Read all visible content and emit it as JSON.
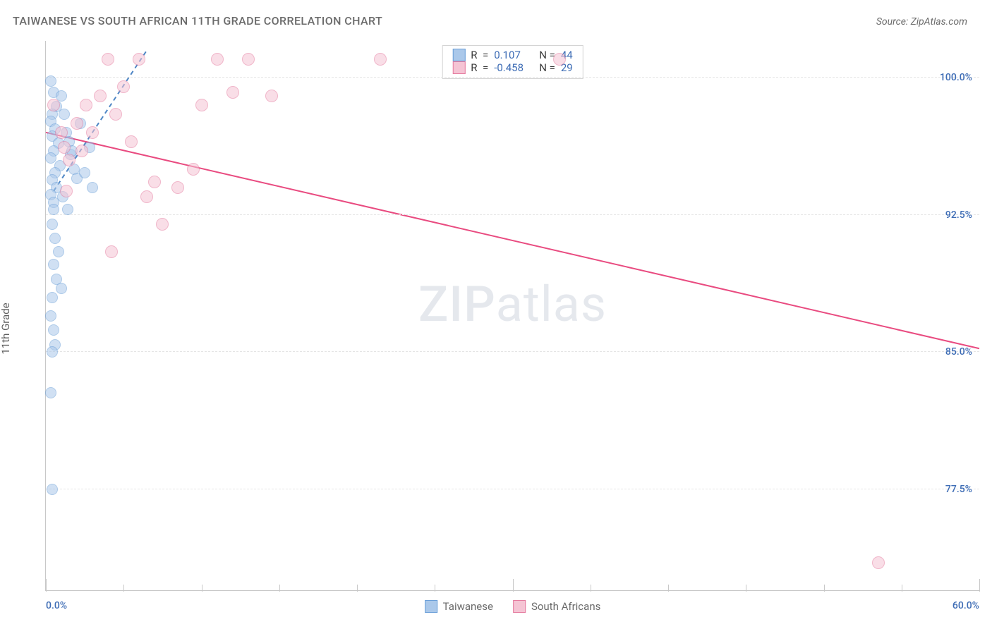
{
  "header": {
    "title": "TAIWANESE VS SOUTH AFRICAN 11TH GRADE CORRELATION CHART",
    "source": "Source: ZipAtlas.com"
  },
  "watermark": {
    "prefix": "ZIP",
    "suffix": "atlas"
  },
  "ylabel": "11th Grade",
  "chart": {
    "type": "scatter",
    "xlim": [
      0,
      60
    ],
    "ylim": [
      72,
      102
    ],
    "xticks": [
      0,
      30,
      60
    ],
    "xtick_labels": [
      "0.0%",
      "",
      "60.0%"
    ],
    "yticks": [
      77.5,
      85.0,
      92.5,
      100.0
    ],
    "ytick_labels": [
      "77.5%",
      "85.0%",
      "92.5%",
      "100.0%"
    ],
    "xminor_ticks": [
      5,
      10,
      15,
      20,
      25,
      35,
      40,
      45,
      50,
      55
    ],
    "grid_color": "#e5e5e5",
    "axis_color": "#c8c8c8",
    "background_color": "#ffffff",
    "tick_label_color": "#3d6cb5",
    "series": [
      {
        "name": "Taiwanese",
        "label": "Taiwanese",
        "marker_fill": "#aac8ea",
        "marker_fill_opacity": 0.55,
        "marker_stroke": "#6b9fd8",
        "marker_radius": 8,
        "trend_dashed": true,
        "trend": {
          "x0": 0.5,
          "y0": 93.8,
          "x1": 6.5,
          "y1": 101.5,
          "color": "#4e86c5",
          "width": 2
        },
        "stats": {
          "R": "0.107",
          "N": "44"
        },
        "points": [
          [
            0.3,
            99.8
          ],
          [
            0.5,
            99.2
          ],
          [
            0.7,
            98.4
          ],
          [
            0.4,
            98.0
          ],
          [
            0.3,
            97.6
          ],
          [
            0.6,
            97.2
          ],
          [
            0.4,
            96.8
          ],
          [
            0.8,
            96.4
          ],
          [
            0.5,
            96.0
          ],
          [
            0.3,
            95.6
          ],
          [
            0.9,
            95.2
          ],
          [
            0.6,
            94.8
          ],
          [
            0.4,
            94.4
          ],
          [
            0.7,
            94.0
          ],
          [
            0.3,
            93.6
          ],
          [
            0.5,
            93.2
          ],
          [
            1.0,
            99.0
          ],
          [
            1.2,
            98.0
          ],
          [
            1.3,
            97.0
          ],
          [
            1.5,
            96.5
          ],
          [
            1.6,
            95.8
          ],
          [
            1.8,
            95.0
          ],
          [
            2.0,
            94.5
          ],
          [
            1.1,
            93.5
          ],
          [
            1.4,
            92.8
          ],
          [
            1.7,
            96.0
          ],
          [
            2.2,
            97.5
          ],
          [
            2.5,
            94.8
          ],
          [
            2.8,
            96.2
          ],
          [
            3.0,
            94.0
          ],
          [
            0.4,
            92.0
          ],
          [
            0.6,
            91.2
          ],
          [
            0.5,
            89.8
          ],
          [
            0.7,
            89.0
          ],
          [
            0.4,
            88.0
          ],
          [
            0.3,
            87.0
          ],
          [
            0.5,
            86.2
          ],
          [
            0.6,
            85.4
          ],
          [
            0.4,
            85.0
          ],
          [
            0.3,
            82.8
          ],
          [
            0.4,
            77.5
          ],
          [
            0.8,
            90.5
          ],
          [
            1.0,
            88.5
          ],
          [
            0.5,
            92.8
          ]
        ]
      },
      {
        "name": "South Africans",
        "label": "South Africans",
        "marker_fill": "#f5c4d4",
        "marker_fill_opacity": 0.55,
        "marker_stroke": "#e57b9f",
        "marker_radius": 9,
        "trend_dashed": false,
        "trend": {
          "x0": 0.0,
          "y0": 97.0,
          "x1": 60.0,
          "y1": 85.2,
          "color": "#e94b80",
          "width": 2
        },
        "stats": {
          "R": "-0.458",
          "N": "29"
        },
        "points": [
          [
            0.5,
            98.5
          ],
          [
            1.0,
            97.0
          ],
          [
            1.2,
            96.2
          ],
          [
            1.5,
            95.5
          ],
          [
            2.0,
            97.5
          ],
          [
            2.3,
            96.0
          ],
          [
            2.6,
            98.5
          ],
          [
            3.0,
            97.0
          ],
          [
            3.5,
            99.0
          ],
          [
            4.0,
            101.0
          ],
          [
            4.5,
            98.0
          ],
          [
            5.0,
            99.5
          ],
          [
            5.5,
            96.5
          ],
          [
            6.0,
            101.0
          ],
          [
            6.5,
            93.5
          ],
          [
            7.0,
            94.3
          ],
          [
            8.5,
            94.0
          ],
          [
            9.5,
            95.0
          ],
          [
            10.0,
            98.5
          ],
          [
            11.0,
            101.0
          ],
          [
            12.0,
            99.2
          ],
          [
            13.0,
            101.0
          ],
          [
            14.5,
            99.0
          ],
          [
            21.5,
            101.0
          ],
          [
            33.0,
            101.0
          ],
          [
            4.2,
            90.5
          ],
          [
            7.5,
            92.0
          ],
          [
            1.3,
            93.8
          ],
          [
            53.5,
            73.5
          ]
        ]
      }
    ]
  },
  "legend": {
    "items": [
      {
        "label": "Taiwanese",
        "fill": "#aac8ea",
        "stroke": "#6b9fd8"
      },
      {
        "label": "South Africans",
        "fill": "#f5c4d4",
        "stroke": "#e57b9f"
      }
    ]
  },
  "stats_labels": {
    "r": "R  =",
    "n": "N ="
  }
}
